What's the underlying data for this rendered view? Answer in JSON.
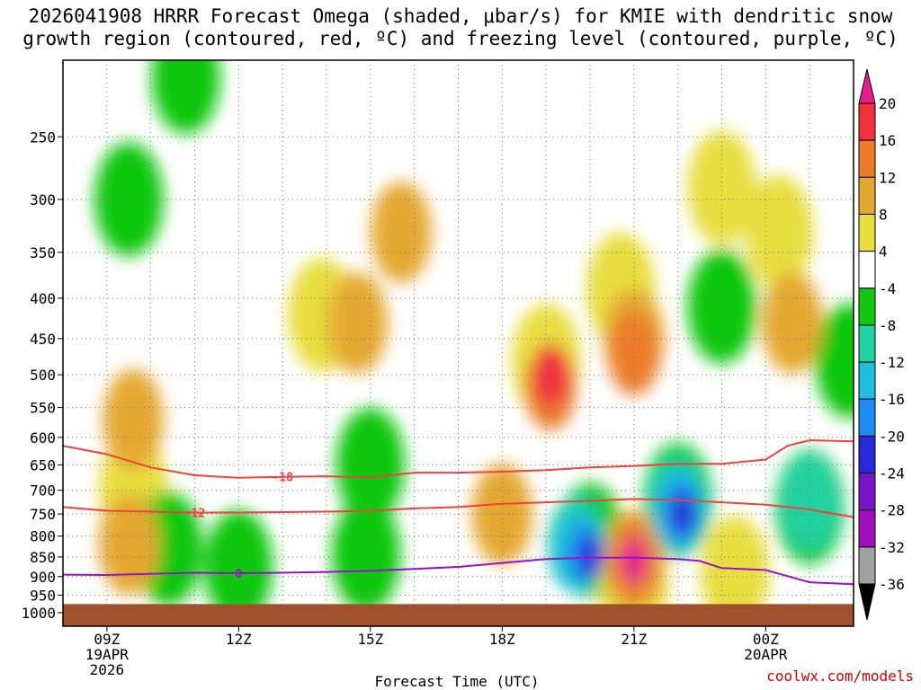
{
  "title": {
    "line1": "2026041908 HRRR Forecast Omega (shaded, μbar/s) for KMIE with dendritic snow",
    "line2": "growth region (contoured, red, ºC) and freezing level (contoured, purple, ºC)"
  },
  "credit": "coolwx.com/models",
  "chart_data": {
    "type": "heatmap",
    "title": "2026041908 HRRR Forecast Omega (shaded, μbar/s) for KMIE with dendritic snow growth region (contoured, red, ºC) and freezing level (contoured, purple, ºC)",
    "xlabel": "Forecast Time (UTC)",
    "ylabel": "",
    "x_ticks": [
      {
        "hour": 9,
        "lines": [
          "09Z",
          "19APR",
          "2026"
        ]
      },
      {
        "hour": 12,
        "lines": [
          "12Z"
        ]
      },
      {
        "hour": 15,
        "lines": [
          "15Z"
        ]
      },
      {
        "hour": 18,
        "lines": [
          "18Z"
        ]
      },
      {
        "hour": 21,
        "lines": [
          "21Z"
        ]
      },
      {
        "hour": 24,
        "lines": [
          "00Z",
          "20APR"
        ]
      }
    ],
    "xlim_hours": [
      8,
      26
    ],
    "y_scale": "log pressure (inverted)",
    "ylim_hpa": [
      1040,
      200
    ],
    "y_ticks": [
      250,
      300,
      350,
      400,
      450,
      500,
      550,
      600,
      650,
      700,
      750,
      800,
      850,
      900,
      950,
      1000
    ],
    "grid": "dotted",
    "surface_below_hpa": 975,
    "colorbar": {
      "labels": [
        "20",
        "16",
        "12",
        "8",
        "4",
        "-4",
        "-8",
        "-12",
        "-16",
        "-20",
        "-24",
        "-28",
        "-32",
        "-36"
      ],
      "bins": [
        {
          "from": 16,
          "to": 20,
          "color": "#f0323c"
        },
        {
          "from": 12,
          "to": 16,
          "color": "#ec7c2a"
        },
        {
          "from": 8,
          "to": 12,
          "color": "#e4a830"
        },
        {
          "from": 4,
          "to": 8,
          "color": "#e7de40"
        },
        {
          "from": -4,
          "to": 4,
          "color": "#ffffff"
        },
        {
          "from": -8,
          "to": -4,
          "color": "#10c810"
        },
        {
          "from": -12,
          "to": -8,
          "color": "#20d2a0"
        },
        {
          "from": -16,
          "to": -12,
          "color": "#1ebedc"
        },
        {
          "from": -20,
          "to": -16,
          "color": "#1e8cf0"
        },
        {
          "from": -24,
          "to": -20,
          "color": "#2828dc"
        },
        {
          "from": -28,
          "to": -24,
          "color": "#7a14c8"
        },
        {
          "from": -32,
          "to": -28,
          "color": "#a010c0"
        },
        {
          "from": -36,
          "to": -32,
          "color": "#a0a0a0"
        }
      ],
      "over_color": "#e61e8c",
      "under_color": "#000000"
    },
    "omega_features": [
      {
        "hour": 9.5,
        "p": 300,
        "value": -6
      },
      {
        "hour": 10.8,
        "p": 210,
        "value": -6
      },
      {
        "hour": 9.6,
        "p": 700,
        "value": 6
      },
      {
        "hour": 9.6,
        "p": 570,
        "value": 9
      },
      {
        "hour": 9.5,
        "p": 820,
        "value": 9
      },
      {
        "hour": 10.4,
        "p": 830,
        "value": -6
      },
      {
        "hour": 12.0,
        "p": 875,
        "value": -6
      },
      {
        "hour": 13.9,
        "p": 420,
        "value": 6
      },
      {
        "hour": 14.7,
        "p": 430,
        "value": 9
      },
      {
        "hour": 15.7,
        "p": 330,
        "value": 9
      },
      {
        "hour": 15.0,
        "p": 650,
        "value": -6
      },
      {
        "hour": 14.9,
        "p": 845,
        "value": -6
      },
      {
        "hour": 19.0,
        "p": 480,
        "value": 6
      },
      {
        "hour": 19.1,
        "p": 520,
        "value": 13
      },
      {
        "hour": 19.1,
        "p": 500,
        "value": 18
      },
      {
        "hour": 18.0,
        "p": 750,
        "value": 9
      },
      {
        "hour": 20.7,
        "p": 390,
        "value": 6
      },
      {
        "hour": 21.0,
        "p": 450,
        "value": 9
      },
      {
        "hour": 21.0,
        "p": 470,
        "value": 13
      },
      {
        "hour": 20.0,
        "p": 810,
        "value": -6
      },
      {
        "hour": 19.7,
        "p": 820,
        "value": -10
      },
      {
        "hour": 19.7,
        "p": 835,
        "value": -14
      },
      {
        "hour": 19.9,
        "p": 840,
        "value": -19
      },
      {
        "hour": 20.0,
        "p": 850,
        "value": -23
      },
      {
        "hour": 21.0,
        "p": 860,
        "value": 9
      },
      {
        "hour": 21.0,
        "p": 860,
        "value": 14
      },
      {
        "hour": 21.0,
        "p": 860,
        "value": 22
      },
      {
        "hour": 21.0,
        "p": 925,
        "value": 6
      },
      {
        "hour": 22.0,
        "p": 720,
        "value": -6
      },
      {
        "hour": 22.0,
        "p": 730,
        "value": -10
      },
      {
        "hour": 22.0,
        "p": 740,
        "value": -14
      },
      {
        "hour": 22.1,
        "p": 745,
        "value": -18
      },
      {
        "hour": 22.1,
        "p": 750,
        "value": -23
      },
      {
        "hour": 24.3,
        "p": 330,
        "value": 6
      },
      {
        "hour": 24.6,
        "p": 430,
        "value": 9
      },
      {
        "hour": 23.0,
        "p": 410,
        "value": -6
      },
      {
        "hour": 23.0,
        "p": 290,
        "value": 6
      },
      {
        "hour": 25.0,
        "p": 735,
        "value": -6
      },
      {
        "hour": 25.0,
        "p": 725,
        "value": -10
      },
      {
        "hour": 23.3,
        "p": 890,
        "value": 6
      },
      {
        "hour": 25.9,
        "p": 480,
        "value": -6
      }
    ],
    "series": [
      {
        "name": "-18",
        "color": "#f04040",
        "hours": [
          8,
          9,
          10,
          11,
          12,
          13,
          14,
          15,
          16,
          17,
          18,
          19,
          20,
          21,
          22,
          23,
          24,
          24.5,
          25,
          26
        ],
        "p": [
          615,
          630,
          655,
          670,
          675,
          673,
          672,
          674,
          665,
          665,
          663,
          660,
          655,
          652,
          648,
          648,
          640,
          615,
          605,
          607
        ]
      },
      {
        "name": "-12",
        "color": "#f04040",
        "hours": [
          8,
          9,
          10,
          11,
          12,
          13,
          14,
          15,
          16,
          17,
          18,
          19,
          20,
          21,
          22,
          23,
          24,
          25,
          26
        ],
        "p": [
          735,
          743,
          745,
          747,
          747,
          746,
          745,
          743,
          738,
          735,
          728,
          725,
          722,
          718,
          720,
          725,
          730,
          740,
          757
        ]
      },
      {
        "name": "0",
        "color": "#9a10c8",
        "hours": [
          8,
          9,
          10,
          11,
          12,
          13,
          14,
          15,
          16,
          17,
          18,
          19,
          20,
          21,
          22,
          22.5,
          23,
          24,
          25,
          26
        ],
        "p": [
          895,
          896,
          893,
          890,
          891,
          890,
          888,
          885,
          880,
          875,
          865,
          855,
          852,
          852,
          855,
          860,
          878,
          883,
          915,
          920
        ]
      }
    ]
  }
}
